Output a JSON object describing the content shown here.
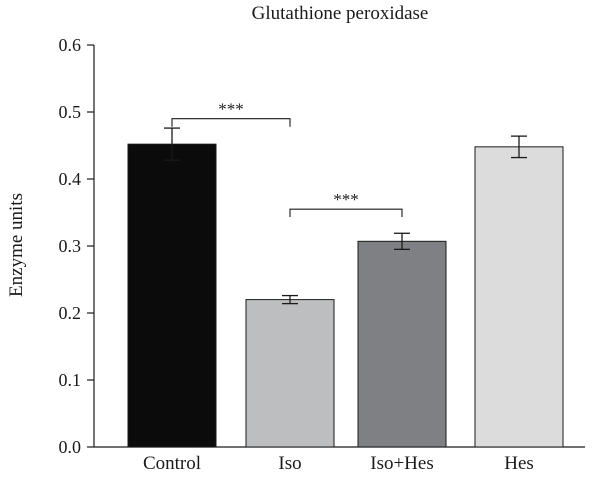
{
  "chart_data": {
    "type": "bar",
    "title": "Glutathione peroxidase",
    "xlabel": "",
    "ylabel": "Enzyme units",
    "ylim": [
      0,
      0.6
    ],
    "yticks": [
      "0.0",
      "0.1",
      "0.2",
      "0.3",
      "0.4",
      "0.5",
      "0.6"
    ],
    "categories": [
      "Control",
      "Iso",
      "Iso+Hes",
      "Hes"
    ],
    "values": [
      0.452,
      0.22,
      0.307,
      0.448
    ],
    "errors": [
      0.024,
      0.006,
      0.012,
      0.016
    ],
    "colors": [
      "#0b0b0b",
      "#bdbec0",
      "#7f8083",
      "#dcdcdd"
    ],
    "significance": [
      {
        "from": 0,
        "to": 1,
        "label": "***",
        "y": 0.49
      },
      {
        "from": 1,
        "to": 2,
        "label": "***",
        "y": 0.355
      }
    ],
    "grid": false,
    "legend": "none"
  }
}
